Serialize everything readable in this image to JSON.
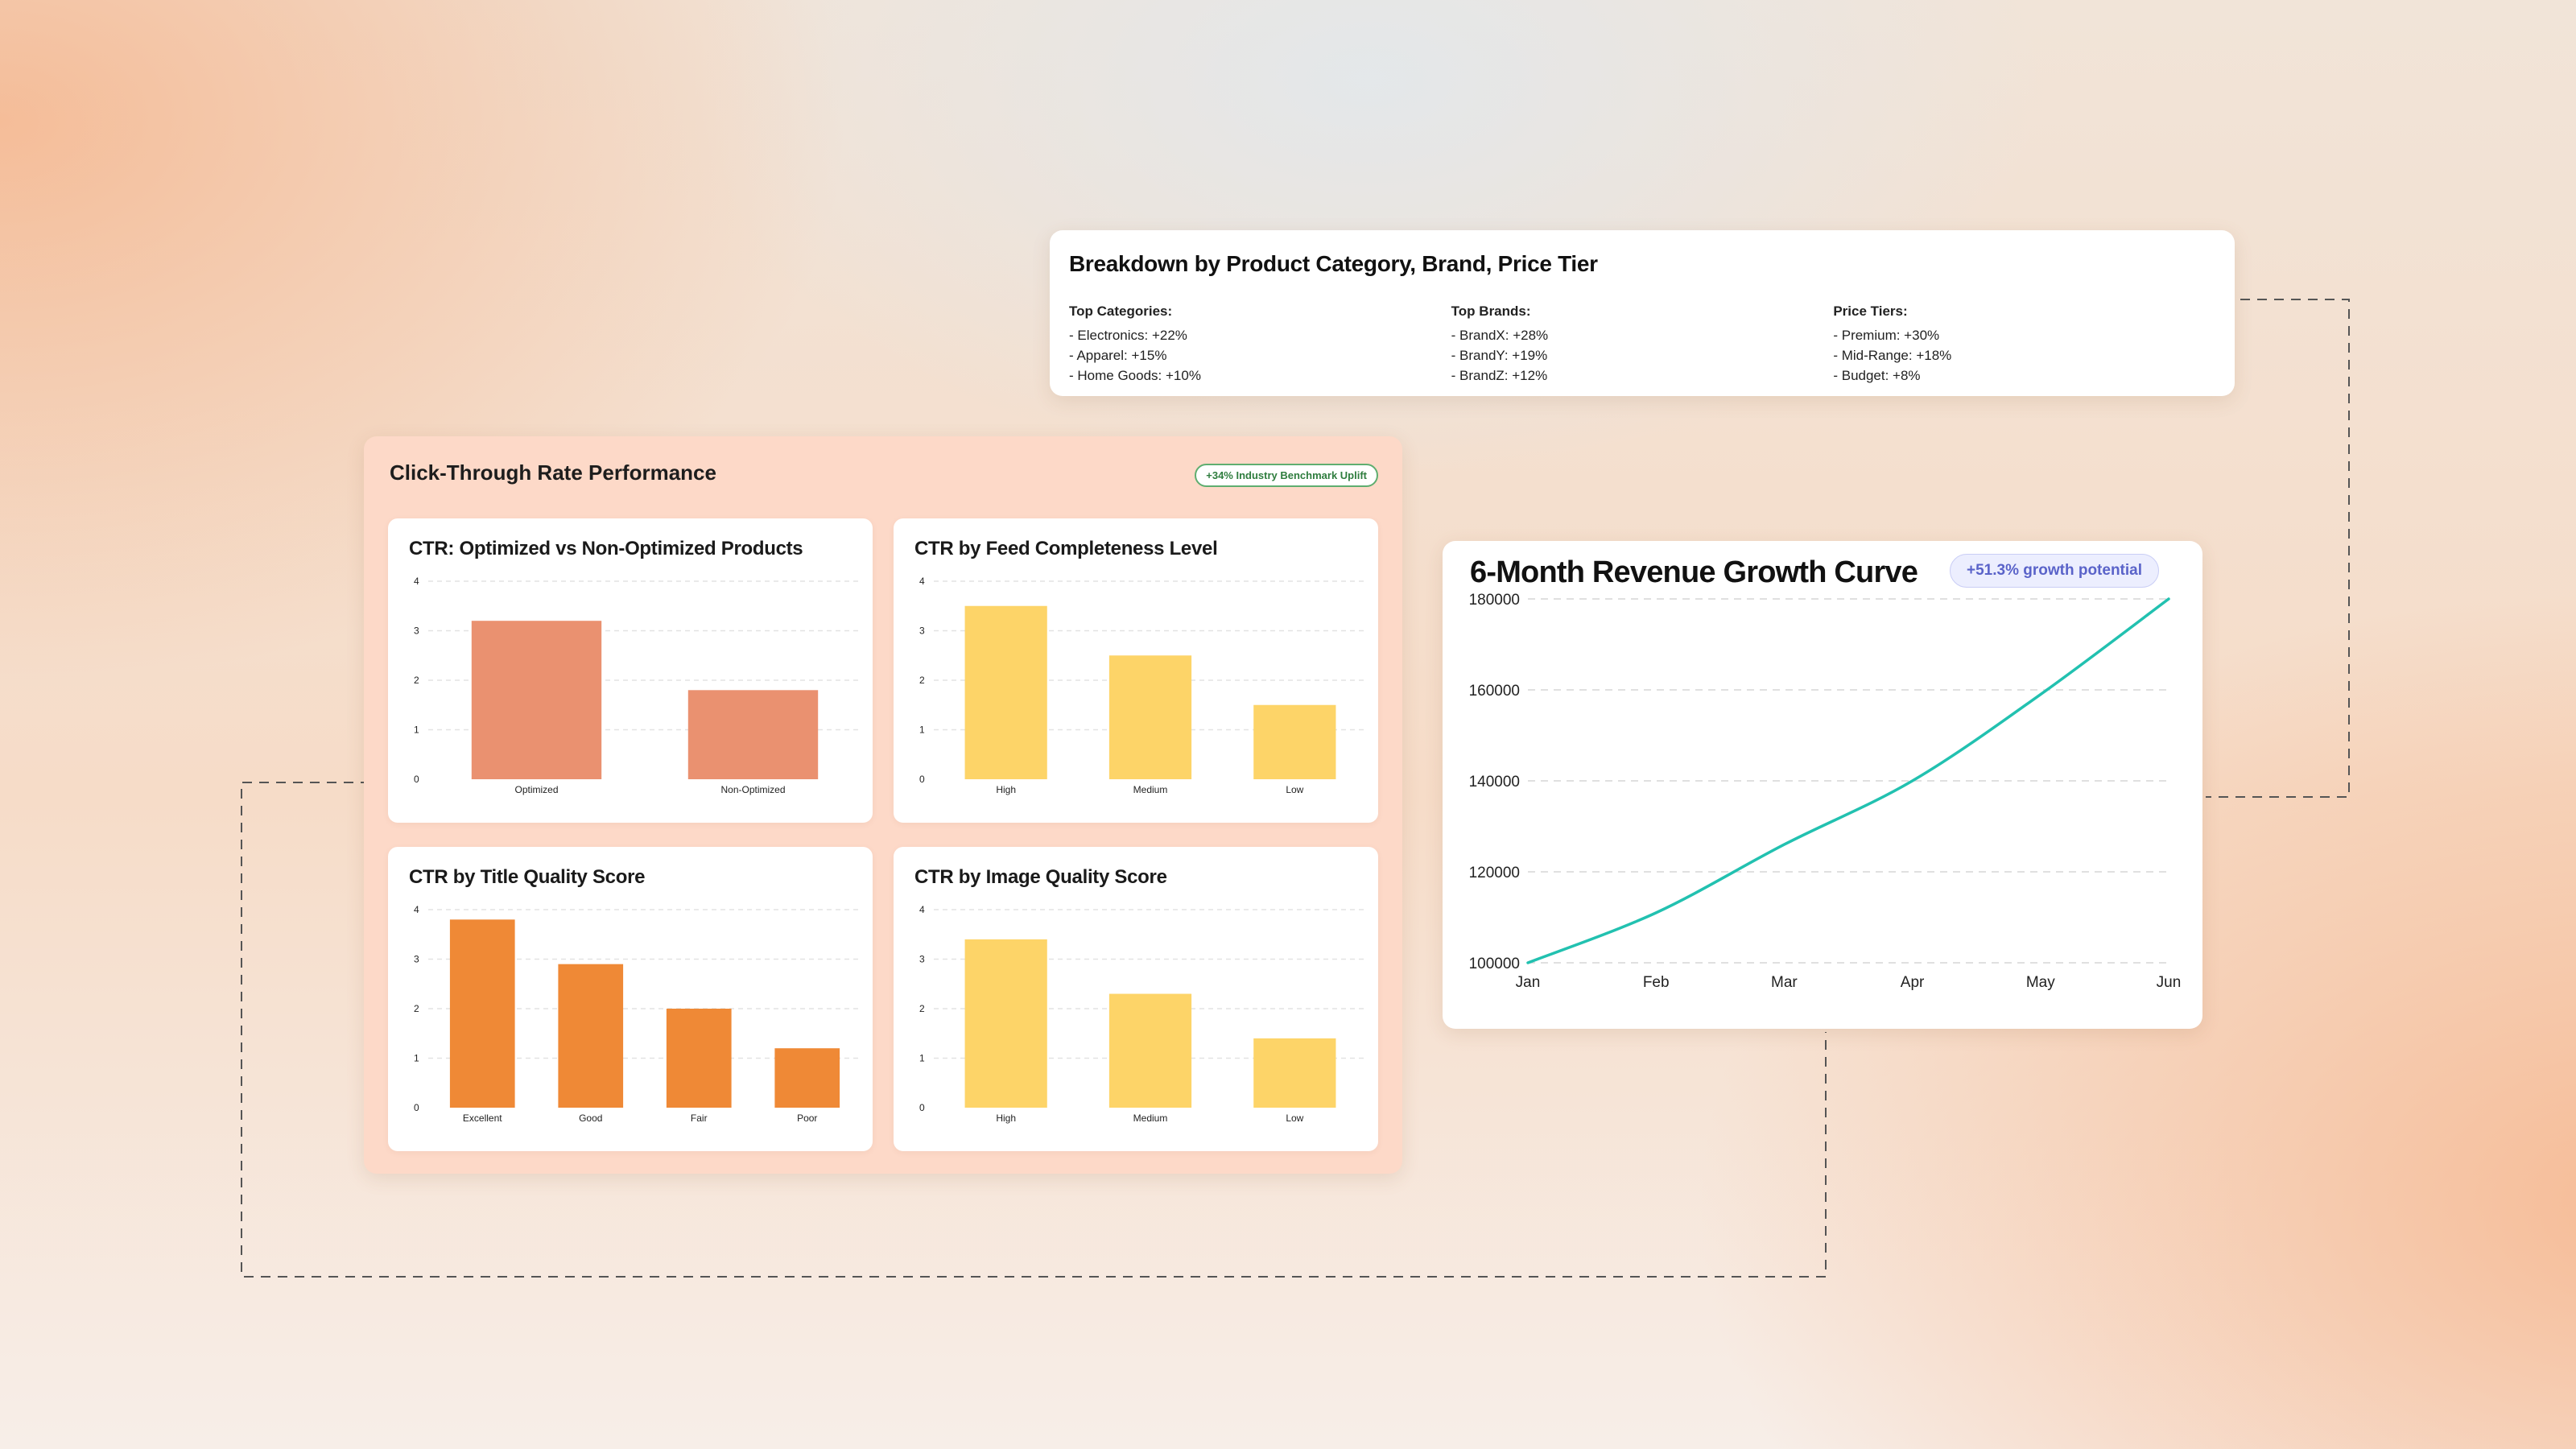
{
  "breakdown": {
    "title": "Breakdown by Product Category, Brand, Price Tier",
    "columns": [
      {
        "heading": "Top Categories:",
        "items": [
          "- Electronics: +22%",
          "- Apparel: +15%",
          "- Home Goods: +10%"
        ]
      },
      {
        "heading": "Top Brands:",
        "items": [
          "- BrandX: +28%",
          "- BrandY: +19%",
          "- BrandZ: +12%"
        ]
      },
      {
        "heading": "Price Tiers:",
        "items": [
          "- Premium: +30%",
          "- Mid-Range: +18%",
          "- Budget: +8%"
        ]
      }
    ]
  },
  "ctr_panel": {
    "title": "Click-Through Rate Performance",
    "badge": "+34% Industry Benchmark Uplift"
  },
  "revenue": {
    "badge": "+51.3% growth potential"
  },
  "colors": {
    "salmon": "#ea9170",
    "yellow": "#fdd468",
    "orange": "#ef8936",
    "teal": "#22c1b0",
    "panel_bg": "#fdd9c8"
  },
  "chart_data": [
    {
      "type": "bar",
      "title": "CTR: Optimized vs Non-Optimized Products",
      "categories": [
        "Optimized",
        "Non-Optimized"
      ],
      "values": [
        3.2,
        1.8
      ],
      "ylim": [
        0,
        4
      ],
      "yticks": [
        0,
        1,
        2,
        3,
        4
      ],
      "color": "#ea9170",
      "grid": true
    },
    {
      "type": "bar",
      "title": "CTR by Feed Completeness Level",
      "categories": [
        "High",
        "Medium",
        "Low"
      ],
      "values": [
        3.5,
        2.5,
        1.5
      ],
      "ylim": [
        0,
        4
      ],
      "yticks": [
        0,
        1,
        2,
        3,
        4
      ],
      "color": "#fdd468",
      "grid": true
    },
    {
      "type": "bar",
      "title": "CTR by Title Quality Score",
      "categories": [
        "Excellent",
        "Good",
        "Fair",
        "Poor"
      ],
      "values": [
        3.8,
        2.9,
        2.0,
        1.2
      ],
      "ylim": [
        0,
        4
      ],
      "yticks": [
        0,
        1,
        2,
        3,
        4
      ],
      "color": "#ef8936",
      "grid": true
    },
    {
      "type": "bar",
      "title": "CTR by Image Quality Score",
      "categories": [
        "High",
        "Medium",
        "Low"
      ],
      "values": [
        3.4,
        2.3,
        1.4
      ],
      "ylim": [
        0,
        4
      ],
      "yticks": [
        0,
        1,
        2,
        3,
        4
      ],
      "color": "#fdd468",
      "grid": true
    },
    {
      "type": "line",
      "title": "6-Month Revenue Growth Curve",
      "x": [
        "Jan",
        "Feb",
        "Mar",
        "Apr",
        "May",
        "Jun"
      ],
      "values": [
        100000,
        111000,
        126000,
        140000,
        159000,
        180000
      ],
      "ylim": [
        100000,
        180000
      ],
      "yticks": [
        100000,
        120000,
        140000,
        160000,
        180000
      ],
      "color": "#22c1b0",
      "grid": true
    }
  ]
}
